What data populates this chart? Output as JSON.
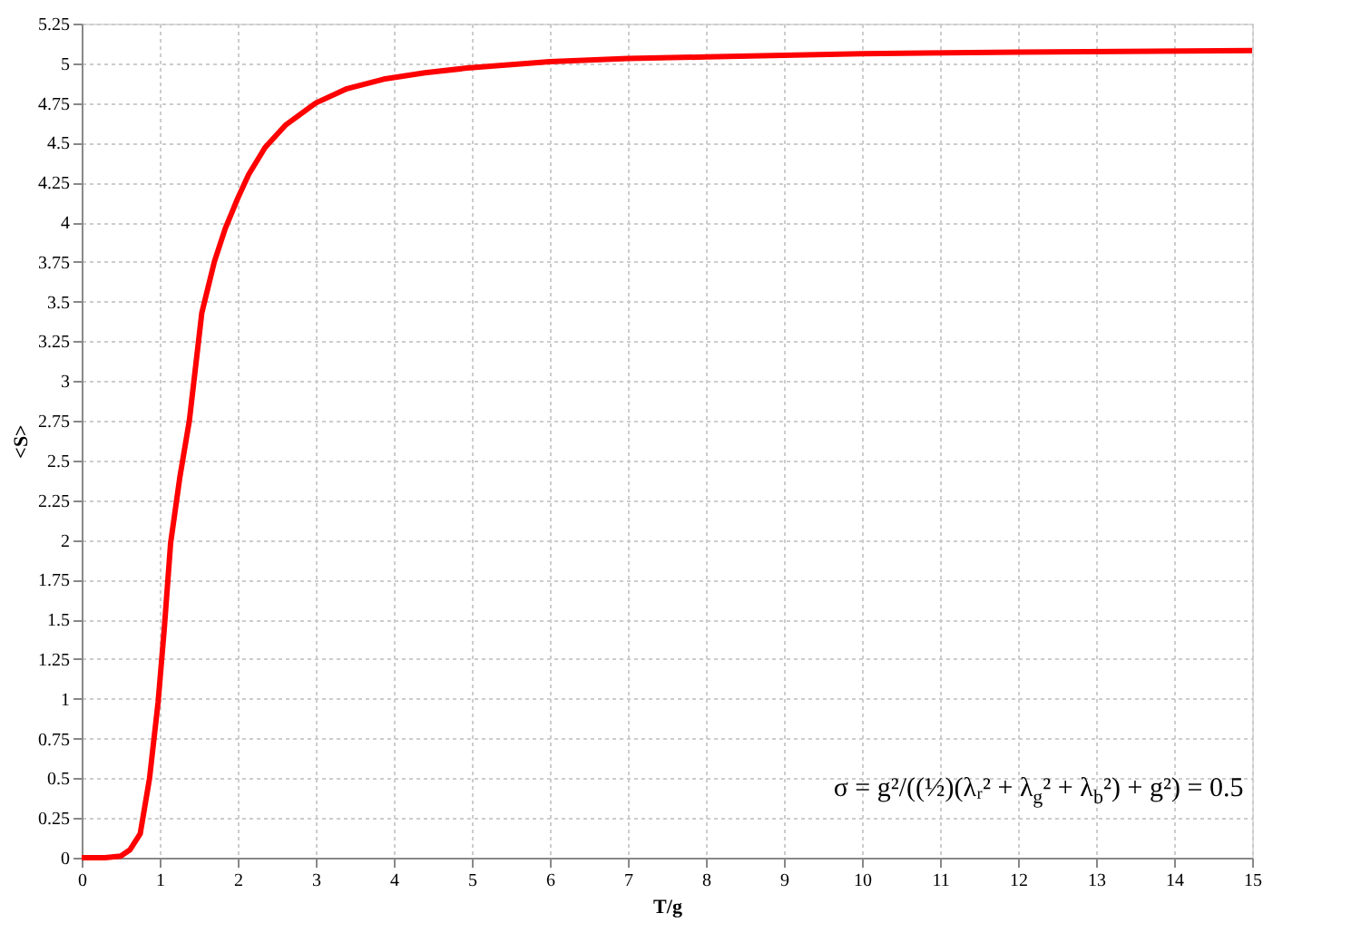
{
  "chart_data": {
    "type": "line",
    "xlabel": "T/g",
    "ylabel": "<S>",
    "series": [
      {
        "color": "#ff0000",
        "x": [
          0,
          0.3,
          0.5,
          0.62,
          0.75,
          0.87,
          0.98,
          1.06,
          1.14,
          1.26,
          1.38,
          1.54,
          1.7,
          1.84,
          2.0,
          2.14,
          2.35,
          2.61,
          3.0,
          3.4,
          3.87,
          4.4,
          4.94,
          6,
          7,
          8,
          10,
          12,
          15
        ],
        "values": [
          0,
          0,
          0.01,
          0.05,
          0.15,
          0.5,
          0.98,
          1.45,
          1.98,
          2.4,
          2.75,
          3.43,
          3.75,
          3.96,
          4.15,
          4.3,
          4.47,
          4.61,
          4.75,
          4.84,
          4.9,
          4.94,
          4.97,
          5.01,
          5.03,
          5.04,
          5.06,
          5.07,
          5.08
        ]
      }
    ],
    "xlim": [
      0,
      15
    ],
    "xticks": [
      0,
      1,
      2,
      3,
      4,
      5,
      6,
      7,
      8,
      9,
      10,
      11,
      12,
      13,
      14,
      15
    ],
    "ylim": [
      0,
      5.25
    ],
    "yticks": [
      0,
      0.25,
      0.5,
      0.75,
      1,
      1.25,
      1.5,
      1.75,
      2,
      2.25,
      2.5,
      2.75,
      3,
      3.25,
      3.5,
      3.75,
      4,
      4.25,
      4.5,
      4.75,
      5,
      5.25
    ],
    "grid": true,
    "line_style": "solid",
    "marker": "none",
    "annotations": [
      "σ = g²/((½)(λᵣ² + λ$_{g}$² + λ$_{b}$²) + g²) = 0.5"
    ]
  }
}
